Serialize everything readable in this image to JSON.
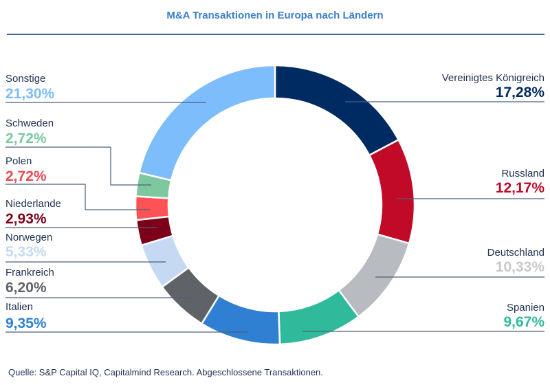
{
  "chart_data": {
    "type": "pie",
    "variant": "donut",
    "title": "M&A Transaktionen in Europa nach Ländern",
    "unit": "%",
    "slices": [
      {
        "label": "Vereinigtes Königreich",
        "value": 17.28,
        "display": "17,28%",
        "color": "#002b62",
        "label_color": "#002b62",
        "side": "right"
      },
      {
        "label": "Russland",
        "value": 12.17,
        "display": "12,17%",
        "color": "#c00a28",
        "label_color": "#c00a28",
        "side": "right"
      },
      {
        "label": "Deutschland",
        "value": 10.33,
        "display": "10,33%",
        "color": "#b8bbbf",
        "label_color": "#c6c8cb",
        "side": "right"
      },
      {
        "label": "Spanien",
        "value": 9.67,
        "display": "9,67%",
        "color": "#2fba9b",
        "label_color": "#2fba9b",
        "side": "right"
      },
      {
        "label": "Italien",
        "value": 9.35,
        "display": "9,35%",
        "color": "#2f7fd3",
        "label_color": "#2f7fd3",
        "side": "left"
      },
      {
        "label": "Frankreich",
        "value": 6.2,
        "display": "6,20%",
        "color": "#5f6368",
        "label_color": "#5f6368",
        "side": "left"
      },
      {
        "label": "Norwegen",
        "value": 5.33,
        "display": "5,33%",
        "color": "#c5daf2",
        "label_color": "#c5daf2",
        "side": "left"
      },
      {
        "label": "Niederlande",
        "value": 2.93,
        "display": "2,93%",
        "color": "#7d0019",
        "label_color": "#7d0019",
        "side": "left"
      },
      {
        "label": "Polen",
        "value": 2.72,
        "display": "2,72%",
        "color": "#ff5257",
        "label_color": "#ec4a50",
        "side": "left"
      },
      {
        "label": "Schweden",
        "value": 2.72,
        "display": "2,72%",
        "color": "#7ec8a0",
        "label_color": "#7ec8a0",
        "side": "left"
      },
      {
        "label": "Sonstige",
        "value": 21.3,
        "display": "21,30%",
        "color": "#7dbdfb",
        "label_color": "#7dbdfb",
        "side": "left"
      }
    ],
    "legend": "none",
    "start_angle": "top",
    "direction": "clockwise"
  },
  "footer": {
    "source": "Quelle: S&P Capital IQ, Capitalmind Research. Abgeschlossene Transaktionen."
  }
}
